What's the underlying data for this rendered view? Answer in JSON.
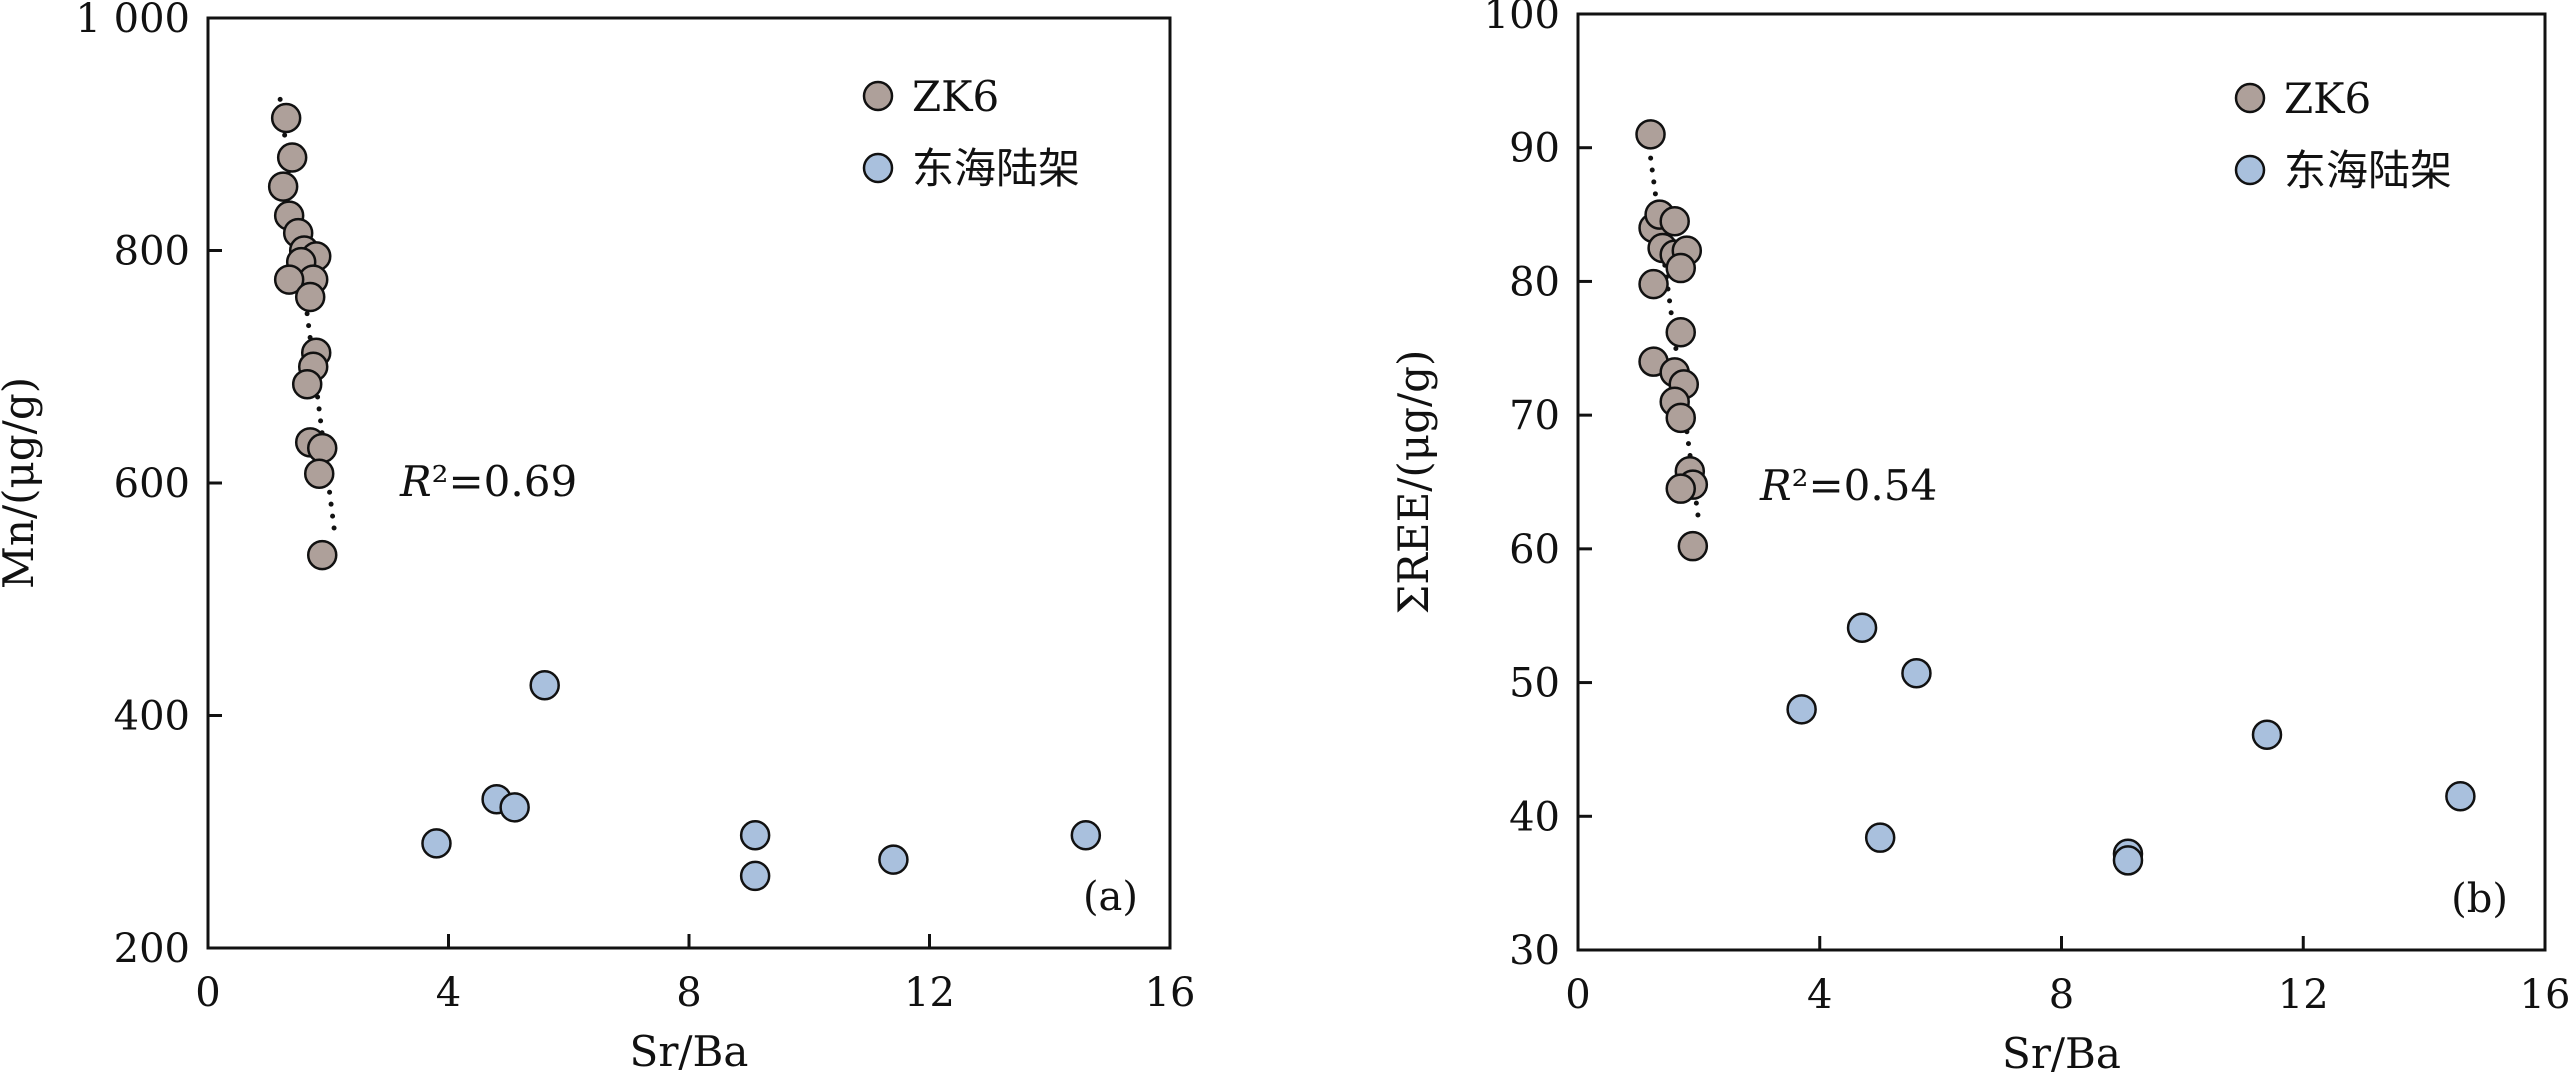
{
  "chart_data": [
    {
      "type": "scatter",
      "panel_label": "(a)",
      "xlabel": "Sr/Ba",
      "ylabel": "Mn/(μg/g)",
      "xlim": [
        0,
        16
      ],
      "ylim": [
        200,
        1000
      ],
      "xticks": [
        0,
        4,
        8,
        12,
        16
      ],
      "xtick_labels": [
        "0",
        "4",
        "8",
        "12",
        "16"
      ],
      "yticks": [
        200,
        400,
        600,
        800,
        1000
      ],
      "ytick_labels": [
        "200",
        "400",
        "600",
        "800",
        "1 000"
      ],
      "grid": false,
      "legend_position": "top-right",
      "annotation": {
        "italic": "R",
        "rest": "²=0.69"
      },
      "trendline": {
        "series": "ZK6",
        "style": "dotted",
        "x": [
          1.2,
          2.1
        ],
        "y": [
          930,
          560
        ]
      },
      "series": [
        {
          "name": "ZK6",
          "color": "#aea09a",
          "points": [
            [
              1.3,
              914
            ],
            [
              1.4,
              880
            ],
            [
              1.25,
              855
            ],
            [
              1.35,
              830
            ],
            [
              1.5,
              815
            ],
            [
              1.6,
              800
            ],
            [
              1.8,
              795
            ],
            [
              1.55,
              790
            ],
            [
              1.75,
              775
            ],
            [
              1.35,
              775
            ],
            [
              1.7,
              760
            ],
            [
              1.8,
              712
            ],
            [
              1.75,
              700
            ],
            [
              1.65,
              685
            ],
            [
              1.7,
              635
            ],
            [
              1.9,
              630
            ],
            [
              1.85,
              608
            ],
            [
              1.9,
              538
            ]
          ]
        },
        {
          "name": "东海陆架",
          "color": "#a9c0dd",
          "points": [
            [
              3.8,
              290
            ],
            [
              4.8,
              328
            ],
            [
              5.1,
              321
            ],
            [
              5.6,
              426
            ],
            [
              9.1,
              297
            ],
            [
              9.1,
              262
            ],
            [
              11.4,
              276
            ],
            [
              14.6,
              297
            ]
          ]
        }
      ]
    },
    {
      "type": "scatter",
      "panel_label": "(b)",
      "xlabel": "Sr/Ba",
      "ylabel": "ΣREE/(μg/g)",
      "xlim": [
        0,
        16
      ],
      "ylim": [
        30,
        100
      ],
      "xticks": [
        0,
        4,
        8,
        12,
        16
      ],
      "xtick_labels": [
        "0",
        "4",
        "8",
        "12",
        "16"
      ],
      "yticks": [
        30,
        40,
        50,
        60,
        70,
        80,
        90,
        100
      ],
      "ytick_labels": [
        "30",
        "40",
        "50",
        "60",
        "70",
        "80",
        "90",
        "100"
      ],
      "grid": false,
      "legend_position": "top-right",
      "annotation": {
        "italic": "R",
        "rest": "²=0.54"
      },
      "trendline": {
        "series": "ZK6",
        "style": "dotted",
        "x": [
          1.15,
          2.0
        ],
        "y": [
          91,
          62
        ]
      },
      "series": [
        {
          "name": "ZK6",
          "color": "#aea09a",
          "points": [
            [
              1.2,
              91.0
            ],
            [
              1.25,
              84.0
            ],
            [
              1.35,
              85.0
            ],
            [
              1.6,
              84.5
            ],
            [
              1.4,
              82.5
            ],
            [
              1.6,
              82.0
            ],
            [
              1.8,
              82.3
            ],
            [
              1.7,
              81.0
            ],
            [
              1.25,
              79.8
            ],
            [
              1.7,
              76.2
            ],
            [
              1.25,
              74.0
            ],
            [
              1.6,
              73.2
            ],
            [
              1.75,
              72.3
            ],
            [
              1.6,
              71.0
            ],
            [
              1.7,
              69.8
            ],
            [
              1.85,
              65.8
            ],
            [
              1.9,
              64.8
            ],
            [
              1.7,
              64.5
            ],
            [
              1.9,
              60.2
            ]
          ]
        },
        {
          "name": "东海陆架",
          "color": "#a9c0dd",
          "points": [
            [
              3.7,
              48.0
            ],
            [
              4.7,
              54.1
            ],
            [
              5.6,
              50.7
            ],
            [
              5.0,
              38.4
            ],
            [
              9.1,
              37.2
            ],
            [
              9.1,
              36.7
            ],
            [
              11.4,
              46.1
            ],
            [
              14.6,
              41.5
            ]
          ]
        }
      ]
    }
  ]
}
